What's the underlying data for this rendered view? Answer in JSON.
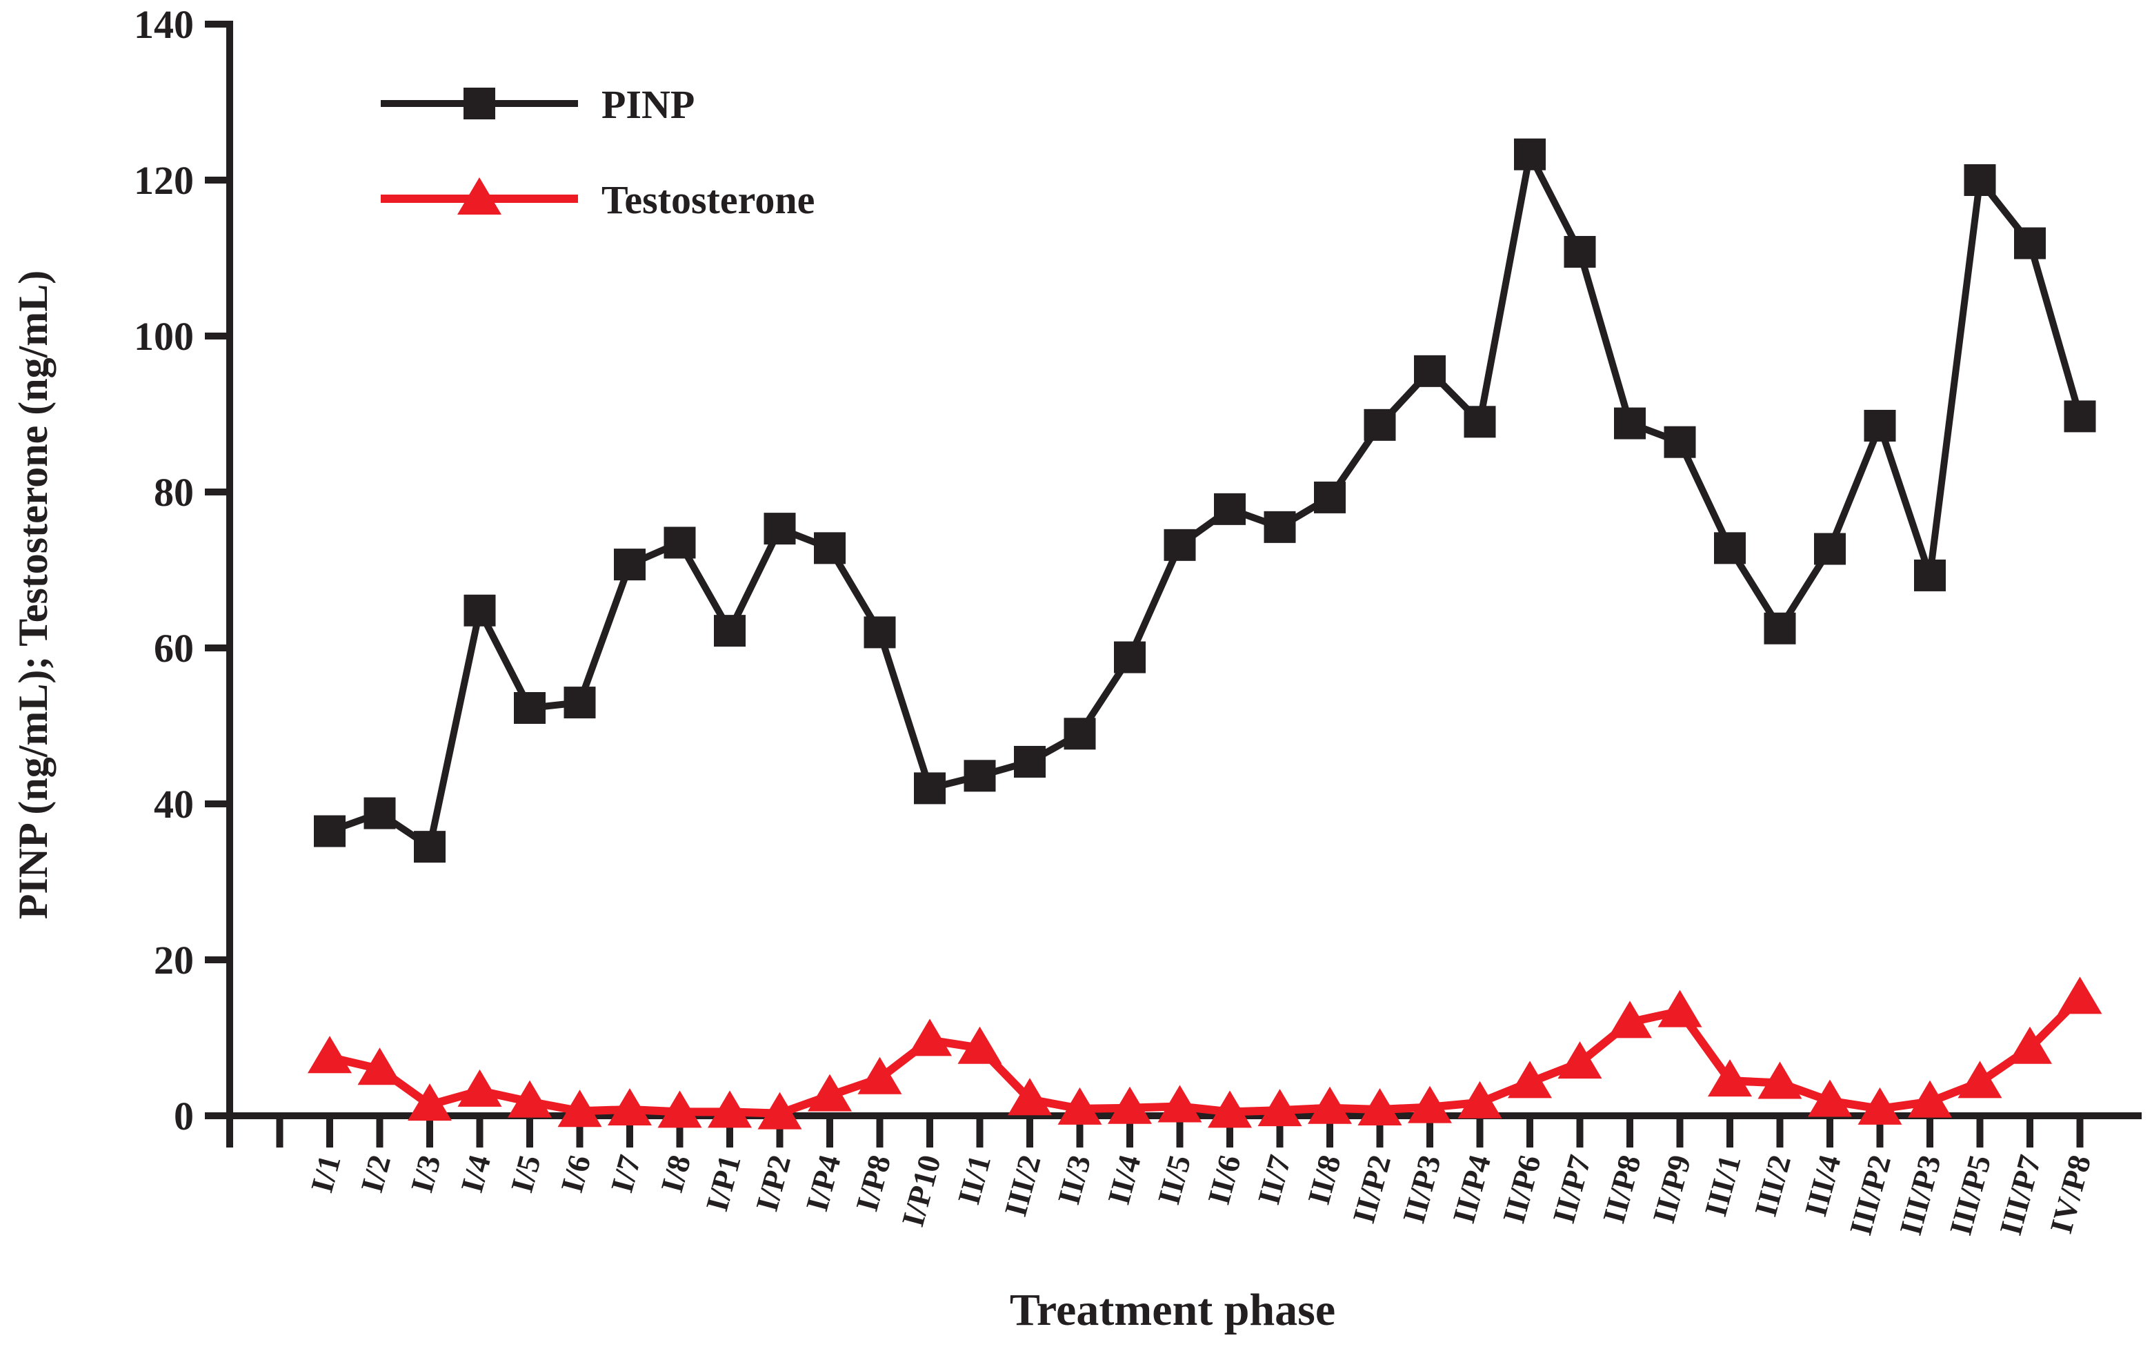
{
  "figure": {
    "background": "#ffffff"
  },
  "chart_data": {
    "type": "line",
    "title": "",
    "xlabel": "Treatment phase",
    "ylabel": "PINP (ng/mL); Testosterone (ng/mL)",
    "ylim": [
      0,
      140
    ],
    "yticks": [
      0,
      20,
      40,
      60,
      80,
      100,
      120,
      140
    ],
    "grid": false,
    "legend_position": "upper-left-inside",
    "categories": [
      "I/1",
      "I/2",
      "I/3",
      "I/4",
      "I/5",
      "I/6",
      "I/7",
      "I/8",
      "I/P1",
      "I/P2",
      "I/P4",
      "I/P8",
      "I/P10",
      "II/1",
      "III/2",
      "II/3",
      "II/4",
      "II/5",
      "II/6",
      "II/7",
      "II/8",
      "II/P2",
      "II/P3",
      "II/P4",
      "II/P6",
      "II/P7",
      "II/P8",
      "II/P9",
      "III/1",
      "III/2",
      "III/4",
      "III/P2",
      "III/P3",
      "III/P5",
      "III/P7",
      "IV/P8"
    ],
    "series": [
      {
        "name": "PINP",
        "color": "#231f20",
        "marker": "square",
        "values": [
          36.5,
          38.8,
          34.5,
          64.8,
          52.3,
          53.0,
          70.7,
          73.5,
          62.2,
          75.3,
          72.8,
          62.0,
          42.0,
          43.6,
          45.4,
          49.0,
          58.8,
          73.2,
          77.8,
          75.5,
          79.3,
          88.6,
          95.5,
          89.0,
          123.3,
          110.8,
          88.8,
          86.4,
          72.8,
          62.5,
          72.7,
          88.5,
          69.3,
          120.0,
          111.9,
          89.7
        ]
      },
      {
        "name": "Testosterone",
        "color": "#ed1c24",
        "marker": "triangle",
        "values": [
          7.5,
          6.0,
          1.4,
          3.2,
          1.8,
          0.6,
          0.8,
          0.5,
          0.5,
          0.3,
          2.6,
          4.8,
          9.7,
          8.7,
          2.1,
          0.9,
          1.0,
          1.2,
          0.5,
          0.7,
          1.0,
          0.8,
          1.1,
          1.7,
          4.3,
          6.8,
          12.0,
          13.4,
          4.5,
          4.2,
          1.9,
          0.9,
          1.8,
          4.3,
          8.7,
          15.1
        ]
      }
    ]
  }
}
